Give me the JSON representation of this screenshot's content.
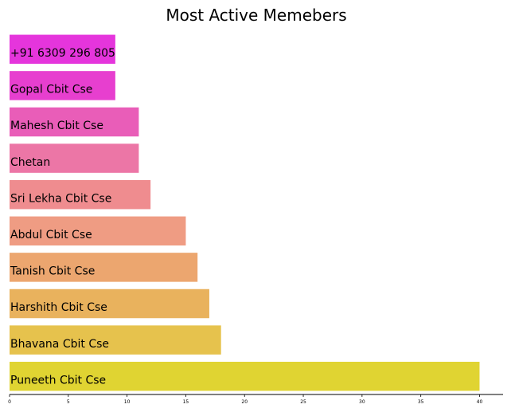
{
  "chart_data": {
    "type": "bar",
    "orientation": "horizontal",
    "title": "Most Active Memebers",
    "xlabel": "",
    "ylabel": "",
    "xlim": [
      0,
      42
    ],
    "xticks": [
      "0",
      "5",
      "10",
      "15",
      "20",
      "25",
      "30",
      "35",
      "40"
    ],
    "categories": [
      "+91 6309 296 805",
      "Gopal Cbit Cse",
      "Mahesh Cbit Cse",
      "Chetan",
      "Sri Lekha Cbit Cse",
      "Abdul Cbit Cse",
      "Tanish Cbit Cse",
      "Harshith Cbit Cse",
      "Bhavana Cbit Cse",
      "Puneeth Cbit Cse"
    ],
    "values": [
      9,
      9,
      11,
      11,
      12,
      15,
      16,
      17,
      18,
      40
    ],
    "colors": [
      "#e535dc",
      "#e73fcf",
      "#e95db8",
      "#ec76a6",
      "#ef8c8f",
      "#ef9c83",
      "#eca66f",
      "#e9b25d",
      "#e6c24d",
      "#e0d432"
    ],
    "grid": false,
    "legend": "none"
  }
}
